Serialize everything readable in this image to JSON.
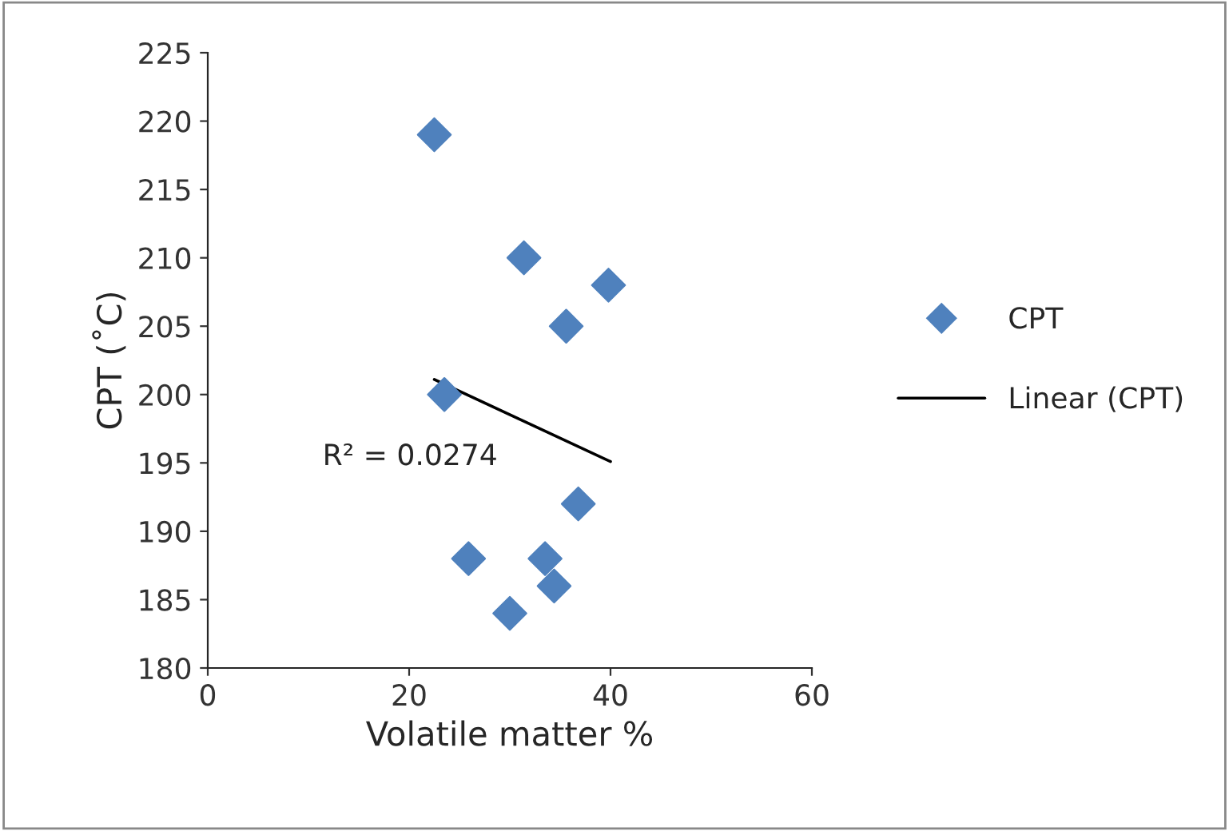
{
  "chart_data": {
    "type": "scatter",
    "xlabel": "Volatile matter %",
    "ylabel": "CPT (˚C)",
    "xlim": [
      0,
      60
    ],
    "xticks": [
      0,
      20,
      40,
      60
    ],
    "ylim": [
      180,
      225
    ],
    "yticks": [
      180,
      185,
      190,
      195,
      200,
      205,
      210,
      215,
      220,
      225
    ],
    "grid": false,
    "legend": "right",
    "series": [
      {
        "name": "CPT",
        "marker": "diamond",
        "color": "#4f81bd",
        "x": [
          22.5,
          31.4,
          39.8,
          35.6,
          23.5,
          36.8,
          25.9,
          33.5,
          34.4,
          30.0
        ],
        "values": [
          219,
          210,
          208,
          205,
          200,
          192,
          188,
          188,
          186,
          184
        ]
      },
      {
        "name": "Linear (CPT)",
        "type": "line",
        "color": "#000000",
        "line_style": "solid",
        "x": [
          22.5,
          40
        ],
        "values": [
          201.1,
          195.1
        ]
      }
    ],
    "annotations": [
      "R² = 0.0274"
    ]
  }
}
